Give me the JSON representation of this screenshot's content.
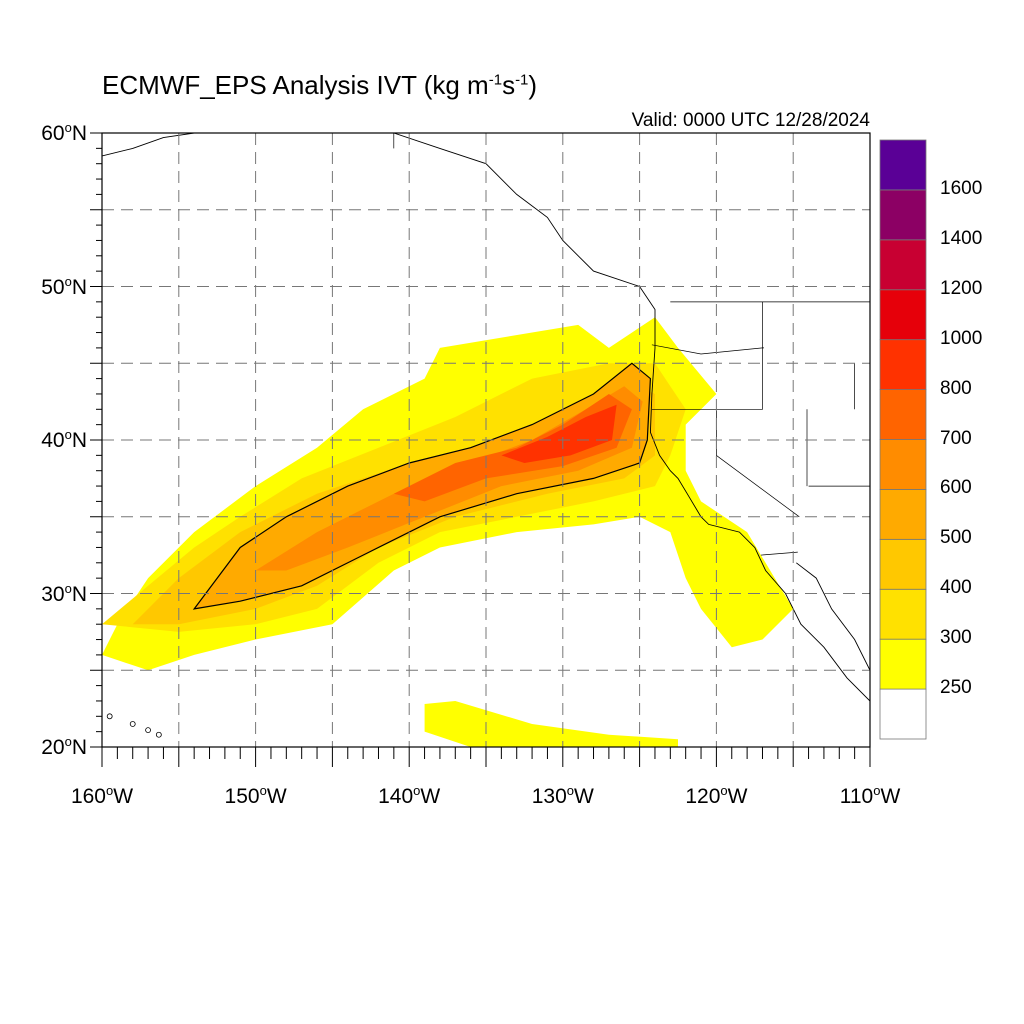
{
  "title": {
    "main": "ECMWF_EPS Analysis IVT (kg m",
    "exp1": "-1",
    "mid": "s",
    "exp2": "-1",
    "end": ")"
  },
  "valid_time": "Valid: 0000 UTC 12/28/2024",
  "map": {
    "lon_range": [
      -160,
      -110
    ],
    "lat_range": [
      20,
      60
    ],
    "gridlines": "dashed",
    "lat_ticks": [
      {
        "value": 60,
        "label": "60",
        "suffix": "N"
      },
      {
        "value": 50,
        "label": "50",
        "suffix": "N"
      },
      {
        "value": 40,
        "label": "40",
        "suffix": "N"
      },
      {
        "value": 30,
        "label": "30",
        "suffix": "N"
      },
      {
        "value": 20,
        "label": "20",
        "suffix": "N"
      }
    ],
    "lon_ticks": [
      {
        "value": -160,
        "label": "160",
        "suffix": "W"
      },
      {
        "value": -150,
        "label": "150",
        "suffix": "W"
      },
      {
        "value": -140,
        "label": "140",
        "suffix": "W"
      },
      {
        "value": -130,
        "label": "130",
        "suffix": "W"
      },
      {
        "value": -120,
        "label": "120",
        "suffix": "W"
      },
      {
        "value": -110,
        "label": "110",
        "suffix": "W"
      }
    ]
  },
  "colorbar": {
    "levels": [
      "250",
      "300",
      "400",
      "500",
      "600",
      "700",
      "800",
      "1000",
      "1200",
      "1400",
      "1600"
    ],
    "colors": [
      "#ffffff",
      "#ffff00",
      "#ffe100",
      "#ffc800",
      "#ffaa00",
      "#ff8c00",
      "#ff6400",
      "#ff3200",
      "#e6000a",
      "#c80032",
      "#8c0064",
      "#5a0096"
    ]
  },
  "chart_data": {
    "type": "heatmap",
    "title": "ECMWF_EPS Analysis IVT (kg m-1s-1)",
    "variable": "IVT",
    "units": "kg m-1 s-1",
    "valid": "0000 UTC 12/28/2024",
    "xlabel": "",
    "ylabel": "",
    "xlim": [
      -160,
      -110
    ],
    "ylim": [
      20,
      60
    ],
    "contour_level": 500,
    "bands": [
      {
        "level": 250,
        "polygon": [
          [
            -160,
            26
          ],
          [
            -159,
            28
          ],
          [
            -157,
            31
          ],
          [
            -154,
            34
          ],
          [
            -150,
            37
          ],
          [
            -146,
            39.5
          ],
          [
            -143,
            42
          ],
          [
            -139,
            44
          ],
          [
            -138,
            46
          ],
          [
            -132,
            47
          ],
          [
            -129,
            47.5
          ],
          [
            -127,
            46
          ],
          [
            -124,
            48
          ],
          [
            -122.5,
            46
          ],
          [
            -120,
            43
          ],
          [
            -122,
            41
          ],
          [
            -122,
            38
          ],
          [
            -121,
            36
          ],
          [
            -118,
            34
          ],
          [
            -115,
            29
          ],
          [
            -117,
            27
          ],
          [
            -119,
            26.5
          ],
          [
            -121,
            29
          ],
          [
            -122,
            31
          ],
          [
            -123,
            34
          ],
          [
            -125,
            35
          ],
          [
            -128,
            34.5
          ],
          [
            -133,
            34
          ],
          [
            -138,
            33
          ],
          [
            -141,
            31.5
          ],
          [
            -145,
            28
          ],
          [
            -150,
            27
          ],
          [
            -154,
            26
          ],
          [
            -157,
            25
          ],
          [
            -160,
            26
          ]
        ]
      },
      {
        "level": 250,
        "polygon": [
          [
            -137,
            23
          ],
          [
            -132,
            21.5
          ],
          [
            -127,
            20.8
          ],
          [
            -122.5,
            20.5
          ],
          [
            -122.5,
            20
          ],
          [
            -136,
            20
          ],
          [
            -139,
            21
          ],
          [
            -139,
            22.8
          ]
        ]
      },
      {
        "level": 300,
        "polygon": [
          [
            -160,
            28
          ],
          [
            -157,
            30.5
          ],
          [
            -154,
            33
          ],
          [
            -151,
            35
          ],
          [
            -147,
            37.5
          ],
          [
            -142,
            39.5
          ],
          [
            -137,
            41.5
          ],
          [
            -132,
            44
          ],
          [
            -127,
            45
          ],
          [
            -124,
            45
          ],
          [
            -122,
            42
          ],
          [
            -123,
            39
          ],
          [
            -124,
            37
          ],
          [
            -128,
            36
          ],
          [
            -133,
            35
          ],
          [
            -138,
            34
          ],
          [
            -142,
            32
          ],
          [
            -146,
            29
          ],
          [
            -150,
            28
          ],
          [
            -155,
            27.5
          ]
        ]
      },
      {
        "level": 400,
        "polygon": [
          [
            -158,
            28
          ],
          [
            -155,
            31
          ],
          [
            -151,
            34
          ],
          [
            -146,
            36.5
          ],
          [
            -140,
            38.5
          ],
          [
            -134,
            40
          ],
          [
            -130,
            42
          ],
          [
            -126,
            44
          ],
          [
            -124,
            43
          ],
          [
            -124,
            39
          ],
          [
            -126,
            37.5
          ],
          [
            -131,
            36.5
          ],
          [
            -137,
            35
          ],
          [
            -142,
            33
          ],
          [
            -146,
            30.5
          ],
          [
            -150,
            29
          ],
          [
            -155,
            28
          ]
        ]
      },
      {
        "level": 500,
        "polygon": [
          [
            -154,
            29
          ],
          [
            -151,
            33
          ],
          [
            -148,
            35
          ],
          [
            -144,
            37
          ],
          [
            -140,
            38.5
          ],
          [
            -136,
            39.5
          ],
          [
            -132,
            41
          ],
          [
            -128,
            43
          ],
          [
            -125.5,
            45
          ],
          [
            -124.3,
            44
          ],
          [
            -124.5,
            40
          ],
          [
            -125,
            38.5
          ],
          [
            -128,
            37.5
          ],
          [
            -133,
            36.5
          ],
          [
            -138,
            35
          ],
          [
            -143,
            32.5
          ],
          [
            -147,
            30.5
          ],
          [
            -151,
            29.5
          ]
        ]
      },
      {
        "level": 600,
        "polygon": [
          [
            -150,
            31.5
          ],
          [
            -146,
            34
          ],
          [
            -141,
            36.5
          ],
          [
            -136,
            38.5
          ],
          [
            -132,
            40
          ],
          [
            -128.5,
            42
          ],
          [
            -126,
            43.5
          ],
          [
            -124.8,
            42.5
          ],
          [
            -125.5,
            39.5
          ],
          [
            -129,
            38
          ],
          [
            -134,
            37
          ],
          [
            -139,
            35
          ],
          [
            -144,
            33
          ],
          [
            -148,
            31.5
          ]
        ]
      },
      {
        "level": 700,
        "polygon": [
          [
            -141,
            36.5
          ],
          [
            -137,
            38.5
          ],
          [
            -133,
            39.5
          ],
          [
            -130,
            41
          ],
          [
            -127,
            43
          ],
          [
            -125.5,
            42
          ],
          [
            -126.5,
            39.5
          ],
          [
            -130,
            38.3
          ],
          [
            -135,
            37.5
          ],
          [
            -139,
            36
          ]
        ]
      },
      {
        "level": 800,
        "polygon": [
          [
            -134,
            39
          ],
          [
            -131,
            40.2
          ],
          [
            -128.5,
            41.5
          ],
          [
            -126.5,
            42.3
          ],
          [
            -126.8,
            40
          ],
          [
            -129.5,
            39
          ],
          [
            -132.5,
            38.5
          ]
        ]
      }
    ]
  }
}
